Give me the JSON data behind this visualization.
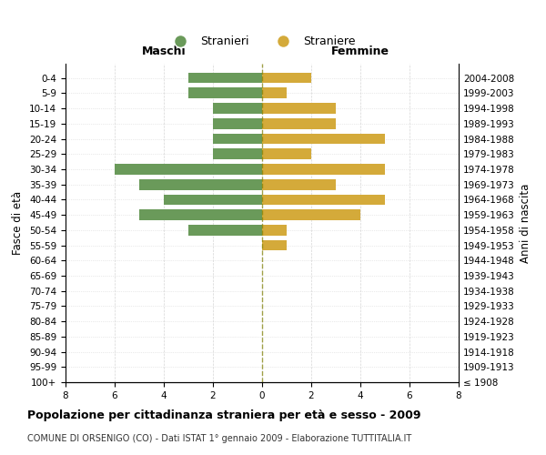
{
  "age_groups": [
    "100+",
    "95-99",
    "90-94",
    "85-89",
    "80-84",
    "75-79",
    "70-74",
    "65-69",
    "60-64",
    "55-59",
    "50-54",
    "45-49",
    "40-44",
    "35-39",
    "30-34",
    "25-29",
    "20-24",
    "15-19",
    "10-14",
    "5-9",
    "0-4"
  ],
  "birth_years": [
    "≤ 1908",
    "1909-1913",
    "1914-1918",
    "1919-1923",
    "1924-1928",
    "1929-1933",
    "1934-1938",
    "1939-1943",
    "1944-1948",
    "1949-1953",
    "1954-1958",
    "1959-1963",
    "1964-1968",
    "1969-1973",
    "1974-1978",
    "1979-1983",
    "1984-1988",
    "1989-1993",
    "1994-1998",
    "1999-2003",
    "2004-2008"
  ],
  "males": [
    0,
    0,
    0,
    0,
    0,
    0,
    0,
    0,
    0,
    0,
    3,
    5,
    4,
    5,
    6,
    2,
    2,
    2,
    2,
    3,
    3
  ],
  "females": [
    0,
    0,
    0,
    0,
    0,
    0,
    0,
    0,
    0,
    1,
    1,
    4,
    5,
    3,
    5,
    2,
    5,
    3,
    3,
    1,
    2
  ],
  "male_color": "#6a9a5a",
  "female_color": "#d4aa3a",
  "xlim": 8,
  "title": "Popolazione per cittadinanza straniera per età e sesso - 2009",
  "subtitle": "COMUNE DI ORSENIGO (CO) - Dati ISTAT 1° gennaio 2009 - Elaborazione TUTTITALIA.IT",
  "ylabel_left": "Fasce di età",
  "ylabel_right": "Anni di nascita",
  "maschi_label": "Maschi",
  "femmine_label": "Femmine",
  "legend_stranieri": "Stranieri",
  "legend_straniere": "Straniere",
  "background_color": "#ffffff",
  "grid_color": "#cccccc"
}
